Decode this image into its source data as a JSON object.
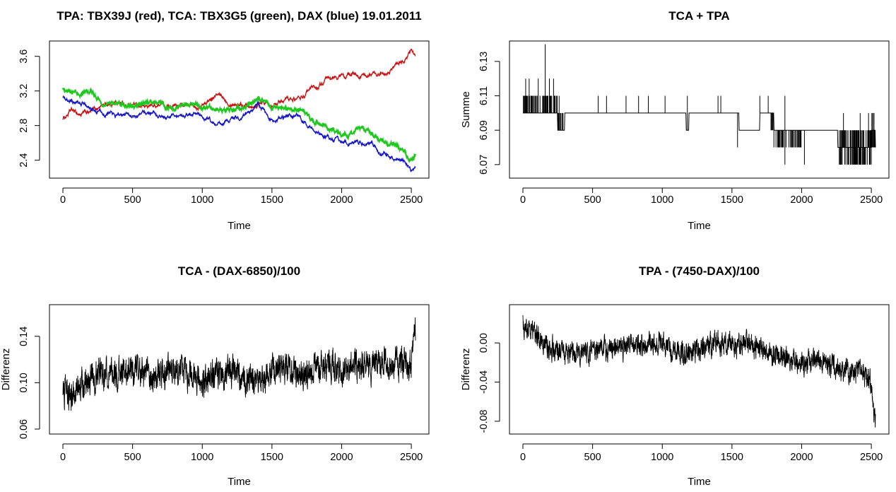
{
  "chart_data": [
    {
      "type": "line",
      "title": "TPA: TBX39J (red), TCA: TBX3G5 (green), DAX (blue) 19.01.2011",
      "xlabel": "Time",
      "ylabel": "",
      "xlim": [
        0,
        2530
      ],
      "ylim": [
        2.25,
        3.72
      ],
      "xticks": [
        0,
        500,
        1000,
        1500,
        2000,
        2500
      ],
      "yticks": [
        2.4,
        2.8,
        3.2,
        3.6
      ],
      "ytick_labels": [
        "2.4",
        "2.8",
        "3.2",
        "3.6"
      ],
      "series": [
        {
          "name": "TPA: TBX39J",
          "color": "#c81414",
          "x": [
            0,
            60,
            120,
            200,
            300,
            400,
            500,
            600,
            700,
            800,
            900,
            1000,
            1100,
            1200,
            1300,
            1400,
            1500,
            1600,
            1700,
            1800,
            1900,
            2000,
            2100,
            2200,
            2300,
            2400,
            2450,
            2500,
            2530
          ],
          "values": [
            2.88,
            2.97,
            2.93,
            2.95,
            3.05,
            3.07,
            3.02,
            3.02,
            3.04,
            3.03,
            3.02,
            3.04,
            3.15,
            3.08,
            3.05,
            3.05,
            3.07,
            3.12,
            3.11,
            3.22,
            3.32,
            3.37,
            3.39,
            3.37,
            3.42,
            3.5,
            3.56,
            3.66,
            3.58
          ]
        },
        {
          "name": "TCA: TBX3G5",
          "color": "#1ec81e",
          "x": [
            0,
            100,
            200,
            300,
            400,
            500,
            600,
            700,
            800,
            900,
            1000,
            1100,
            1200,
            1300,
            1400,
            1500,
            1600,
            1700,
            1800,
            1900,
            2000,
            2100,
            2200,
            2300,
            2400,
            2450,
            2500,
            2530
          ],
          "values": [
            3.22,
            3.18,
            3.19,
            3.02,
            3.06,
            3.01,
            3.07,
            3.03,
            3.0,
            3.05,
            3.0,
            2.98,
            2.98,
            3.02,
            3.12,
            3.0,
            2.99,
            3.0,
            2.87,
            2.76,
            2.71,
            2.73,
            2.72,
            2.62,
            2.56,
            2.5,
            2.38,
            2.47
          ]
        },
        {
          "name": "DAX",
          "color": "#1414c8",
          "x": [
            0,
            100,
            200,
            300,
            400,
            500,
            600,
            700,
            800,
            900,
            1000,
            1100,
            1200,
            1300,
            1400,
            1500,
            1600,
            1700,
            1800,
            1900,
            2000,
            2100,
            2200,
            2300,
            2400,
            2450,
            2500,
            2530
          ],
          "values": [
            3.12,
            3.08,
            3.02,
            2.94,
            2.92,
            2.9,
            2.95,
            2.93,
            2.9,
            2.96,
            2.91,
            2.82,
            2.86,
            2.9,
            3.05,
            2.86,
            2.91,
            2.9,
            2.77,
            2.66,
            2.61,
            2.61,
            2.58,
            2.49,
            2.42,
            2.38,
            2.28,
            2.32
          ]
        }
      ]
    },
    {
      "type": "line",
      "title": "TCA + TPA",
      "xlabel": "Time",
      "ylabel": "Summe",
      "xlim": [
        0,
        2530
      ],
      "ylim": [
        6.065,
        6.139
      ],
      "xticks": [
        0,
        500,
        1000,
        1500,
        2000,
        2500
      ],
      "yticks": [
        6.07,
        6.09,
        6.11,
        6.13
      ],
      "ytick_labels": [
        "6.07",
        "6.09",
        "6.11",
        "6.13"
      ],
      "series": [
        {
          "name": "Summe",
          "color": "#000000",
          "x": [
            0,
            170,
            250,
            300,
            1000,
            1100,
            1170,
            1190,
            1300,
            1400,
            1550,
            1650,
            1700,
            1800,
            1870,
            1890,
            2000,
            2050,
            2100,
            2200,
            2260,
            2300,
            2400,
            2470,
            2500,
            2530
          ],
          "values": [
            6.1,
            6.1,
            6.09,
            6.1,
            6.1,
            6.1,
            6.09,
            6.1,
            6.1,
            6.1,
            6.09,
            6.09,
            6.1,
            6.09,
            6.09,
            6.09,
            6.09,
            6.09,
            6.09,
            6.09,
            6.08,
            6.08,
            6.08,
            6.08,
            6.09,
            6.08
          ],
          "spikes_up": [
            {
              "x": 20,
              "to": 6.12
            },
            {
              "x": 45,
              "to": 6.12
            },
            {
              "x": 70,
              "to": 6.11
            },
            {
              "x": 110,
              "to": 6.12
            },
            {
              "x": 160,
              "to": 6.14
            },
            {
              "x": 190,
              "to": 6.12
            },
            {
              "x": 220,
              "to": 6.12
            },
            {
              "x": 260,
              "to": 6.11
            },
            {
              "x": 540,
              "to": 6.11
            },
            {
              "x": 600,
              "to": 6.11
            },
            {
              "x": 740,
              "to": 6.11
            },
            {
              "x": 830,
              "to": 6.11
            },
            {
              "x": 900,
              "to": 6.11
            },
            {
              "x": 1020,
              "to": 6.11
            },
            {
              "x": 1180,
              "to": 6.11
            },
            {
              "x": 1400,
              "to": 6.11
            },
            {
              "x": 1420,
              "to": 6.11
            },
            {
              "x": 1700,
              "to": 6.11
            },
            {
              "x": 1760,
              "to": 6.11
            },
            {
              "x": 1880,
              "to": 6.11
            },
            {
              "x": 2300,
              "to": 6.1
            },
            {
              "x": 2420,
              "to": 6.1
            },
            {
              "x": 2480,
              "to": 6.1
            }
          ],
          "spikes_down": [
            {
              "x": 1540,
              "to": 6.08
            },
            {
              "x": 1880,
              "to": 6.07
            },
            {
              "x": 1920,
              "to": 6.08
            },
            {
              "x": 2020,
              "to": 6.07
            },
            {
              "x": 2280,
              "to": 6.07
            },
            {
              "x": 2350,
              "to": 6.07
            },
            {
              "x": 2420,
              "to": 6.07
            },
            {
              "x": 2500,
              "to": 6.07
            }
          ]
        }
      ]
    },
    {
      "type": "line",
      "title": "TCA - (DAX-6850)/100",
      "xlabel": "Time",
      "ylabel": "Differenz",
      "xlim": [
        0,
        2530
      ],
      "ylim": [
        0.06,
        0.163
      ],
      "xticks": [
        0,
        500,
        1000,
        1500,
        2000,
        2500
      ],
      "yticks": [
        0.06,
        0.1,
        0.14
      ],
      "ytick_labels": [
        "0.06",
        "0.10",
        "0.14"
      ],
      "series": [
        {
          "name": "Differenz",
          "color": "#000000",
          "x": [
            0,
            50,
            100,
            200,
            300,
            400,
            500,
            600,
            700,
            800,
            900,
            1000,
            1100,
            1200,
            1300,
            1400,
            1500,
            1600,
            1700,
            1800,
            1900,
            2000,
            2100,
            2200,
            2300,
            2400,
            2450,
            2500,
            2520,
            2530
          ],
          "values": [
            0.095,
            0.085,
            0.095,
            0.105,
            0.108,
            0.108,
            0.11,
            0.108,
            0.105,
            0.11,
            0.108,
            0.1,
            0.108,
            0.11,
            0.105,
            0.1,
            0.11,
            0.112,
            0.105,
            0.112,
            0.115,
            0.11,
            0.115,
            0.113,
            0.118,
            0.115,
            0.118,
            0.113,
            0.15,
            0.145
          ],
          "noise_amplitude": 0.01
        }
      ]
    },
    {
      "type": "line",
      "title": "TPA - (7450-DAX)/100",
      "xlabel": "Time",
      "ylabel": "Differenz",
      "xlim": [
        0,
        2530
      ],
      "ylim": [
        -0.088,
        0.034
      ],
      "xticks": [
        0,
        500,
        1000,
        1500,
        2000,
        2500
      ],
      "yticks": [
        -0.08,
        -0.04,
        0.0
      ],
      "ytick_labels": [
        "-0.08",
        "-0.04",
        "0.00"
      ],
      "series": [
        {
          "name": "Differenz",
          "color": "#000000",
          "x": [
            0,
            50,
            100,
            200,
            300,
            400,
            500,
            600,
            700,
            800,
            900,
            1000,
            1100,
            1200,
            1300,
            1400,
            1500,
            1600,
            1700,
            1800,
            1900,
            2000,
            2100,
            2200,
            2300,
            2400,
            2450,
            2500,
            2510,
            2530
          ],
          "values": [
            0.02,
            0.015,
            0.005,
            -0.005,
            -0.012,
            -0.012,
            -0.008,
            -0.005,
            -0.005,
            -0.002,
            0.0,
            0.0,
            -0.01,
            -0.012,
            -0.005,
            0.0,
            -0.002,
            0.0,
            -0.005,
            -0.012,
            -0.015,
            -0.022,
            -0.018,
            -0.025,
            -0.028,
            -0.03,
            -0.032,
            -0.04,
            -0.065,
            -0.075
          ],
          "noise_amplitude": 0.009
        }
      ]
    }
  ]
}
